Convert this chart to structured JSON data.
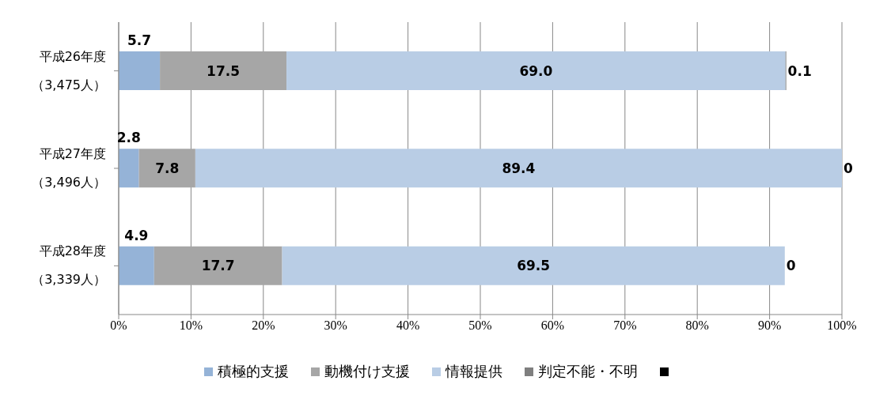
{
  "chart_data": {
    "type": "bar",
    "orientation": "horizontal",
    "stacked": true,
    "categories": [
      "平成26年度（3,475人）",
      "平成27年度（3,496人）",
      "平成28年度（3,339人）"
    ],
    "series": [
      {
        "name": "積極的支援",
        "color": "#95b3d7",
        "values": [
          5.7,
          2.8,
          4.9
        ],
        "value_labels": [
          "5.7",
          "2.8",
          "4.9"
        ]
      },
      {
        "name": "動機付け支援",
        "color": "#a6a6a6",
        "values": [
          17.5,
          7.8,
          17.7
        ],
        "value_labels": [
          "17.5",
          "7.8",
          "17.7"
        ]
      },
      {
        "name": "情報提供",
        "color": "#b9cde5",
        "values": [
          69.0,
          89.4,
          69.5
        ],
        "value_labels": [
          "69.0",
          "89.4",
          "69.5"
        ]
      },
      {
        "name": "判定不能・不明",
        "color": "#7f7f7f",
        "values": [
          0.1,
          0,
          0
        ],
        "value_labels": [
          "0.1",
          "0",
          "0"
        ]
      },
      {
        "color": "#000000",
        "values": [
          null,
          null,
          null
        ]
      }
    ],
    "xlim": [
      0,
      100
    ],
    "xticks": [
      {
        "value": 0,
        "label": "0%"
      },
      {
        "value": 10,
        "label": "10%"
      },
      {
        "value": 20,
        "label": "20%"
      },
      {
        "value": 30,
        "label": "30%"
      },
      {
        "value": 40,
        "label": "40%"
      },
      {
        "value": 50,
        "label": "50%"
      },
      {
        "value": 60,
        "label": "60%"
      },
      {
        "value": 70,
        "label": "70%"
      },
      {
        "value": 80,
        "label": "80%"
      },
      {
        "value": 90,
        "label": "90%"
      },
      {
        "value": 100,
        "label": "100%"
      }
    ],
    "grid": "x",
    "legend": "bottom"
  }
}
